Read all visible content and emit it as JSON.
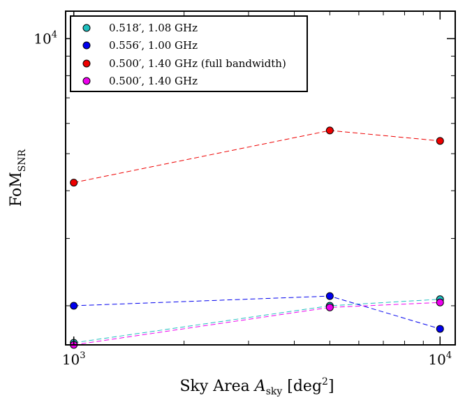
{
  "chart_data": {
    "type": "line",
    "title": "",
    "xlabel": {
      "main": "Sky Area ",
      "var": "A",
      "sub": "sky",
      "units": " [deg",
      "sup": "2",
      "close": "]"
    },
    "ylabel": {
      "main": "FoM",
      "sub": "SNR"
    },
    "xscale": "log",
    "yscale": "log",
    "xlim": [
      950,
      11000
    ],
    "ylim": [
      1580,
      11800
    ],
    "x": [
      1000,
      5000,
      10000
    ],
    "xtick_labels": [
      {
        "value": 1000,
        "base": "10",
        "exp": "3"
      },
      {
        "value": 10000,
        "base": "10",
        "exp": "4"
      }
    ],
    "ytick_labels": [
      {
        "value": 10000,
        "base": "10",
        "exp": "4"
      }
    ],
    "legend_position": "upper-left",
    "series": [
      {
        "name": "0.518′, 1.08 GHz",
        "color": "#1fbfbf",
        "values": [
          1600,
          2000,
          2080
        ]
      },
      {
        "name": "0.556′, 1.00 GHz",
        "color": "#0000ee",
        "values": [
          2000,
          2120,
          1740
        ]
      },
      {
        "name": "0.500′, 1.40 GHz (full bandwidth)",
        "color": "#ee0000",
        "values": [
          4200,
          5750,
          5400
        ]
      },
      {
        "name": "0.500′, 1.40 GHz",
        "color": "#ee00ee",
        "values": [
          1580,
          1980,
          2040
        ]
      }
    ]
  }
}
